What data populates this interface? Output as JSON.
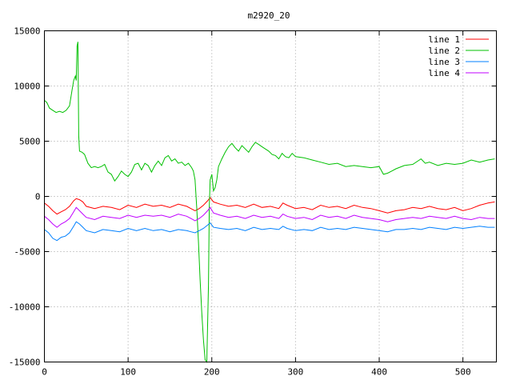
{
  "chart_data": {
    "type": "line",
    "title": "m2920_20",
    "xlabel": "",
    "ylabel": "",
    "xlim": [
      0,
      540
    ],
    "ylim": [
      -15000,
      15000
    ],
    "xticks": [
      0,
      100,
      200,
      300,
      400,
      500
    ],
    "yticks": [
      -15000,
      -10000,
      -5000,
      0,
      5000,
      10000,
      15000
    ],
    "grid": true,
    "legend_position": "top-right",
    "series": [
      {
        "name": "line 1",
        "color": "#ff0000",
        "points": [
          [
            0,
            -600
          ],
          [
            5,
            -900
          ],
          [
            10,
            -1300
          ],
          [
            15,
            -1600
          ],
          [
            20,
            -1400
          ],
          [
            25,
            -1200
          ],
          [
            30,
            -900
          ],
          [
            35,
            -400
          ],
          [
            38,
            -200
          ],
          [
            42,
            -300
          ],
          [
            46,
            -500
          ],
          [
            50,
            -900
          ],
          [
            60,
            -1100
          ],
          [
            70,
            -900
          ],
          [
            80,
            -1000
          ],
          [
            90,
            -1200
          ],
          [
            100,
            -800
          ],
          [
            110,
            -1000
          ],
          [
            120,
            -700
          ],
          [
            130,
            -900
          ],
          [
            140,
            -800
          ],
          [
            150,
            -1000
          ],
          [
            160,
            -700
          ],
          [
            170,
            -900
          ],
          [
            175,
            -1100
          ],
          [
            180,
            -1300
          ],
          [
            185,
            -1100
          ],
          [
            190,
            -800
          ],
          [
            195,
            -400
          ],
          [
            198,
            -100
          ],
          [
            202,
            -500
          ],
          [
            210,
            -700
          ],
          [
            220,
            -900
          ],
          [
            230,
            -800
          ],
          [
            240,
            -1000
          ],
          [
            250,
            -700
          ],
          [
            260,
            -1000
          ],
          [
            270,
            -900
          ],
          [
            280,
            -1100
          ],
          [
            285,
            -600
          ],
          [
            290,
            -800
          ],
          [
            300,
            -1100
          ],
          [
            310,
            -1000
          ],
          [
            320,
            -1200
          ],
          [
            330,
            -800
          ],
          [
            340,
            -1000
          ],
          [
            350,
            -900
          ],
          [
            360,
            -1100
          ],
          [
            370,
            -800
          ],
          [
            380,
            -1000
          ],
          [
            390,
            -1100
          ],
          [
            400,
            -1300
          ],
          [
            410,
            -1500
          ],
          [
            420,
            -1300
          ],
          [
            430,
            -1200
          ],
          [
            440,
            -1000
          ],
          [
            450,
            -1100
          ],
          [
            460,
            -900
          ],
          [
            470,
            -1100
          ],
          [
            480,
            -1200
          ],
          [
            490,
            -1000
          ],
          [
            500,
            -1300
          ],
          [
            510,
            -1100
          ],
          [
            520,
            -800
          ],
          [
            530,
            -600
          ],
          [
            538,
            -500
          ]
        ]
      },
      {
        "name": "line 2",
        "color": "#00c000",
        "points": [
          [
            0,
            8700
          ],
          [
            3,
            8500
          ],
          [
            6,
            8000
          ],
          [
            10,
            7800
          ],
          [
            14,
            7600
          ],
          [
            18,
            7700
          ],
          [
            22,
            7600
          ],
          [
            26,
            7800
          ],
          [
            30,
            8200
          ],
          [
            33,
            9600
          ],
          [
            35,
            10500
          ],
          [
            37,
            10900
          ],
          [
            38,
            10500
          ],
          [
            39,
            13600
          ],
          [
            40,
            14000
          ],
          [
            41,
            5500
          ],
          [
            42,
            4100
          ],
          [
            45,
            4000
          ],
          [
            48,
            3800
          ],
          [
            52,
            3000
          ],
          [
            56,
            2600
          ],
          [
            60,
            2700
          ],
          [
            64,
            2600
          ],
          [
            68,
            2700
          ],
          [
            72,
            2900
          ],
          [
            76,
            2200
          ],
          [
            80,
            2000
          ],
          [
            84,
            1400
          ],
          [
            88,
            1800
          ],
          [
            92,
            2300
          ],
          [
            96,
            2000
          ],
          [
            100,
            1800
          ],
          [
            104,
            2200
          ],
          [
            108,
            2900
          ],
          [
            112,
            3000
          ],
          [
            116,
            2400
          ],
          [
            120,
            3000
          ],
          [
            124,
            2800
          ],
          [
            128,
            2200
          ],
          [
            132,
            2800
          ],
          [
            136,
            3200
          ],
          [
            140,
            2800
          ],
          [
            144,
            3500
          ],
          [
            148,
            3700
          ],
          [
            152,
            3200
          ],
          [
            156,
            3400
          ],
          [
            160,
            3000
          ],
          [
            164,
            3100
          ],
          [
            168,
            2800
          ],
          [
            172,
            3000
          ],
          [
            176,
            2600
          ],
          [
            178,
            2300
          ],
          [
            180,
            1500
          ],
          [
            182,
            -1000
          ],
          [
            184,
            -4000
          ],
          [
            186,
            -7500
          ],
          [
            188,
            -10500
          ],
          [
            190,
            -13000
          ],
          [
            192,
            -14800
          ],
          [
            194,
            -15000
          ],
          [
            196,
            -8000
          ],
          [
            197,
            -1000
          ],
          [
            198,
            1500
          ],
          [
            200,
            2000
          ],
          [
            202,
            500
          ],
          [
            204,
            800
          ],
          [
            206,
            1500
          ],
          [
            208,
            2700
          ],
          [
            212,
            3400
          ],
          [
            216,
            4000
          ],
          [
            220,
            4500
          ],
          [
            224,
            4800
          ],
          [
            228,
            4400
          ],
          [
            232,
            4100
          ],
          [
            236,
            4600
          ],
          [
            240,
            4300
          ],
          [
            244,
            4000
          ],
          [
            248,
            4500
          ],
          [
            252,
            4900
          ],
          [
            256,
            4700
          ],
          [
            260,
            4500
          ],
          [
            264,
            4300
          ],
          [
            268,
            4100
          ],
          [
            272,
            3800
          ],
          [
            276,
            3700
          ],
          [
            280,
            3400
          ],
          [
            284,
            3900
          ],
          [
            288,
            3600
          ],
          [
            292,
            3500
          ],
          [
            296,
            3900
          ],
          [
            300,
            3600
          ],
          [
            310,
            3500
          ],
          [
            320,
            3300
          ],
          [
            330,
            3100
          ],
          [
            340,
            2900
          ],
          [
            350,
            3000
          ],
          [
            360,
            2700
          ],
          [
            370,
            2800
          ],
          [
            380,
            2700
          ],
          [
            390,
            2600
          ],
          [
            400,
            2700
          ],
          [
            405,
            2000
          ],
          [
            410,
            2100
          ],
          [
            415,
            2300
          ],
          [
            420,
            2500
          ],
          [
            430,
            2800
          ],
          [
            440,
            2900
          ],
          [
            450,
            3400
          ],
          [
            455,
            3000
          ],
          [
            460,
            3100
          ],
          [
            470,
            2800
          ],
          [
            480,
            3000
          ],
          [
            490,
            2900
          ],
          [
            500,
            3000
          ],
          [
            510,
            3300
          ],
          [
            520,
            3100
          ],
          [
            530,
            3300
          ],
          [
            538,
            3400
          ]
        ]
      },
      {
        "name": "line 3",
        "color": "#0080ff",
        "points": [
          [
            0,
            -3000
          ],
          [
            5,
            -3300
          ],
          [
            10,
            -3800
          ],
          [
            15,
            -4000
          ],
          [
            20,
            -3700
          ],
          [
            25,
            -3600
          ],
          [
            30,
            -3300
          ],
          [
            35,
            -2700
          ],
          [
            38,
            -2300
          ],
          [
            42,
            -2500
          ],
          [
            46,
            -2800
          ],
          [
            50,
            -3100
          ],
          [
            60,
            -3300
          ],
          [
            70,
            -3000
          ],
          [
            80,
            -3100
          ],
          [
            90,
            -3200
          ],
          [
            100,
            -2900
          ],
          [
            110,
            -3100
          ],
          [
            120,
            -2900
          ],
          [
            130,
            -3100
          ],
          [
            140,
            -3000
          ],
          [
            150,
            -3200
          ],
          [
            160,
            -3000
          ],
          [
            170,
            -3100
          ],
          [
            175,
            -3200
          ],
          [
            180,
            -3300
          ],
          [
            185,
            -3100
          ],
          [
            190,
            -2900
          ],
          [
            195,
            -2600
          ],
          [
            198,
            -2400
          ],
          [
            202,
            -2800
          ],
          [
            210,
            -2900
          ],
          [
            220,
            -3000
          ],
          [
            230,
            -2900
          ],
          [
            240,
            -3100
          ],
          [
            250,
            -2800
          ],
          [
            260,
            -3000
          ],
          [
            270,
            -2900
          ],
          [
            280,
            -3000
          ],
          [
            285,
            -2700
          ],
          [
            290,
            -2900
          ],
          [
            300,
            -3100
          ],
          [
            310,
            -3000
          ],
          [
            320,
            -3100
          ],
          [
            330,
            -2800
          ],
          [
            340,
            -3000
          ],
          [
            350,
            -2900
          ],
          [
            360,
            -3000
          ],
          [
            370,
            -2800
          ],
          [
            380,
            -2900
          ],
          [
            390,
            -3000
          ],
          [
            400,
            -3100
          ],
          [
            410,
            -3200
          ],
          [
            420,
            -3000
          ],
          [
            430,
            -3000
          ],
          [
            440,
            -2900
          ],
          [
            450,
            -3000
          ],
          [
            460,
            -2800
          ],
          [
            470,
            -2900
          ],
          [
            480,
            -3000
          ],
          [
            490,
            -2800
          ],
          [
            500,
            -2900
          ],
          [
            510,
            -2800
          ],
          [
            520,
            -2700
          ],
          [
            530,
            -2800
          ],
          [
            538,
            -2800
          ]
        ]
      },
      {
        "name": "line 4",
        "color": "#c000ff",
        "points": [
          [
            0,
            -1800
          ],
          [
            5,
            -2100
          ],
          [
            10,
            -2500
          ],
          [
            15,
            -2800
          ],
          [
            20,
            -2500
          ],
          [
            25,
            -2300
          ],
          [
            30,
            -2000
          ],
          [
            35,
            -1400
          ],
          [
            38,
            -1000
          ],
          [
            42,
            -1300
          ],
          [
            46,
            -1600
          ],
          [
            50,
            -1900
          ],
          [
            60,
            -2100
          ],
          [
            70,
            -1800
          ],
          [
            80,
            -1900
          ],
          [
            90,
            -2000
          ],
          [
            100,
            -1700
          ],
          [
            110,
            -1900
          ],
          [
            120,
            -1700
          ],
          [
            130,
            -1800
          ],
          [
            140,
            -1700
          ],
          [
            150,
            -1900
          ],
          [
            160,
            -1600
          ],
          [
            170,
            -1800
          ],
          [
            175,
            -2000
          ],
          [
            180,
            -2200
          ],
          [
            185,
            -2000
          ],
          [
            190,
            -1700
          ],
          [
            195,
            -1300
          ],
          [
            198,
            -1000
          ],
          [
            202,
            -1500
          ],
          [
            210,
            -1700
          ],
          [
            220,
            -1900
          ],
          [
            230,
            -1800
          ],
          [
            240,
            -2000
          ],
          [
            250,
            -1700
          ],
          [
            260,
            -1900
          ],
          [
            270,
            -1800
          ],
          [
            280,
            -2000
          ],
          [
            285,
            -1600
          ],
          [
            290,
            -1800
          ],
          [
            300,
            -2000
          ],
          [
            310,
            -1900
          ],
          [
            320,
            -2100
          ],
          [
            330,
            -1700
          ],
          [
            340,
            -1900
          ],
          [
            350,
            -1800
          ],
          [
            360,
            -2000
          ],
          [
            370,
            -1700
          ],
          [
            380,
            -1900
          ],
          [
            390,
            -2000
          ],
          [
            400,
            -2100
          ],
          [
            410,
            -2300
          ],
          [
            420,
            -2100
          ],
          [
            430,
            -2000
          ],
          [
            440,
            -1900
          ],
          [
            450,
            -2000
          ],
          [
            460,
            -1800
          ],
          [
            470,
            -1900
          ],
          [
            480,
            -2000
          ],
          [
            490,
            -1800
          ],
          [
            500,
            -2000
          ],
          [
            510,
            -2100
          ],
          [
            520,
            -1900
          ],
          [
            530,
            -2000
          ],
          [
            538,
            -2000
          ]
        ]
      }
    ]
  }
}
